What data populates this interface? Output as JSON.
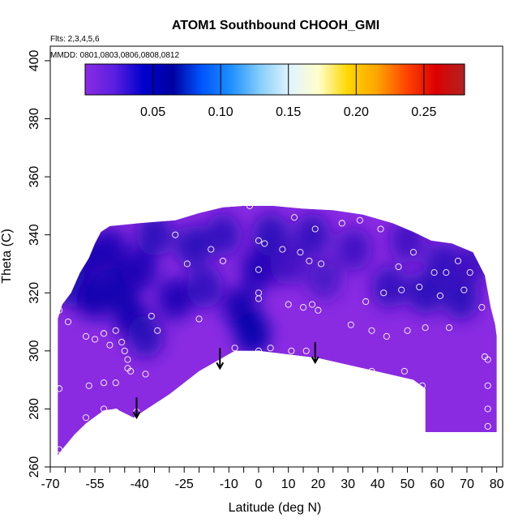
{
  "chart_data": {
    "type": "heatmap",
    "title": "ATOM1 Southbound CHOOH_GMI",
    "flights_note": "Flts: 2,3,4,5,6",
    "dates_note": "MMDD: 0801,0803,0806,0808,0812",
    "xlabel": "Latitude (deg N)",
    "ylabel": "Theta (C)",
    "xlim": [
      -70,
      82
    ],
    "ylim": [
      260,
      405
    ],
    "x_ticks": [
      -70,
      -55,
      -40,
      -25,
      -10,
      0,
      10,
      20,
      30,
      40,
      50,
      60,
      70,
      80
    ],
    "x_minor_ticks": [
      -65,
      -60,
      -50,
      -45,
      -35,
      -30,
      -20,
      -15,
      -5,
      5,
      15,
      25,
      35,
      45,
      55,
      65,
      75
    ],
    "y_ticks": [
      260,
      280,
      300,
      320,
      340,
      360,
      380,
      400
    ],
    "colorbar": {
      "range": [
        0.0,
        0.28
      ],
      "ticks": [
        0.05,
        0.1,
        0.15,
        0.2,
        0.25
      ],
      "tick_labels": [
        "0.05",
        "0.10",
        "0.15",
        "0.20",
        "0.25"
      ],
      "colors": [
        "#8a2be2",
        "#5a1fe0",
        "#0000cd",
        "#0000a0",
        "#0055ff",
        "#1e90ff",
        "#87cefa",
        "#e0f4ff",
        "#ffffcc",
        "#ffd700",
        "#ffa500",
        "#ff4500",
        "#dd0000",
        "#b22222"
      ]
    },
    "color_scale": {
      "low": "#8a2be2",
      "high": "#0000a8"
    },
    "field_range_note": "all values approx 0.00-0.06",
    "region_boundary": {
      "top": [
        [
          -67.5,
          311
        ],
        [
          -66,
          316
        ],
        [
          -63,
          320
        ],
        [
          -60,
          327
        ],
        [
          -57,
          332
        ],
        [
          -55,
          337
        ],
        [
          -53,
          341
        ],
        [
          -50,
          343
        ],
        [
          -40,
          344
        ],
        [
          -28,
          345
        ],
        [
          -20,
          347.5
        ],
        [
          -12,
          349.5
        ],
        [
          -5,
          350
        ],
        [
          5,
          350
        ],
        [
          15,
          349
        ],
        [
          25,
          348.5
        ],
        [
          35,
          347
        ],
        [
          45,
          344
        ],
        [
          52,
          341
        ],
        [
          58,
          338
        ],
        [
          65,
          337
        ],
        [
          72,
          334
        ],
        [
          76,
          326
        ],
        [
          78,
          315
        ],
        [
          79.5,
          309
        ],
        [
          80,
          305
        ]
      ],
      "bottom": [
        [
          80,
          272
        ],
        [
          56,
          272
        ],
        [
          56,
          287
        ],
        [
          52,
          290
        ],
        [
          35,
          294
        ],
        [
          20,
          297.5
        ],
        [
          0,
          300
        ],
        [
          -8,
          300
        ],
        [
          -20,
          293
        ],
        [
          -30,
          285
        ],
        [
          -42,
          277
        ],
        [
          -48,
          280
        ],
        [
          -52,
          279.5
        ],
        [
          -58,
          275
        ],
        [
          -62,
          271
        ],
        [
          -66,
          266
        ],
        [
          -67.5,
          264
        ]
      ]
    },
    "cells": [
      {
        "lon": -62,
        "theta": 322,
        "value": 0.045
      },
      {
        "lon": -57,
        "theta": 332,
        "value": 0.05
      },
      {
        "lon": -55,
        "theta": 318,
        "value": 0.055
      },
      {
        "lon": -50,
        "theta": 335,
        "value": 0.05
      },
      {
        "lon": -47,
        "theta": 322,
        "value": 0.055
      },
      {
        "lon": -43,
        "theta": 312,
        "value": 0.055
      },
      {
        "lon": -40,
        "theta": 328,
        "value": 0.05
      },
      {
        "lon": -38,
        "theta": 305,
        "value": 0.045
      },
      {
        "lon": -35,
        "theta": 340,
        "value": 0.045
      },
      {
        "lon": -28,
        "theta": 318,
        "value": 0.05
      },
      {
        "lon": -22,
        "theta": 336,
        "value": 0.045
      },
      {
        "lon": -18,
        "theta": 322,
        "value": 0.04
      },
      {
        "lon": -12,
        "theta": 340,
        "value": 0.04
      },
      {
        "lon": -6,
        "theta": 315,
        "value": 0.055
      },
      {
        "lon": -2,
        "theta": 306,
        "value": 0.06
      },
      {
        "lon": 0,
        "theta": 328,
        "value": 0.05
      },
      {
        "lon": 4,
        "theta": 340,
        "value": 0.045
      },
      {
        "lon": 10,
        "theta": 330,
        "value": 0.035
      },
      {
        "lon": 18,
        "theta": 340,
        "value": 0.04
      },
      {
        "lon": 22,
        "theta": 325,
        "value": 0.03
      },
      {
        "lon": 32,
        "theta": 335,
        "value": 0.035
      },
      {
        "lon": 44,
        "theta": 322,
        "value": 0.04
      },
      {
        "lon": 50,
        "theta": 338,
        "value": 0.035
      },
      {
        "lon": 56,
        "theta": 320,
        "value": 0.045
      },
      {
        "lon": 62,
        "theta": 330,
        "value": 0.04
      },
      {
        "lon": 68,
        "theta": 318,
        "value": 0.045
      },
      {
        "lon": 72,
        "theta": 330,
        "value": 0.035
      }
    ],
    "points": [
      {
        "lon": -64,
        "theta": 310
      },
      {
        "lon": -58,
        "theta": 305
      },
      {
        "lon": -55,
        "theta": 304
      },
      {
        "lon": -52,
        "theta": 306
      },
      {
        "lon": -48,
        "theta": 307
      },
      {
        "lon": -46,
        "theta": 303
      },
      {
        "lon": -45,
        "theta": 300
      },
      {
        "lon": -44,
        "theta": 297
      },
      {
        "lon": -44,
        "theta": 294
      },
      {
        "lon": -50,
        "theta": 302
      },
      {
        "lon": -43,
        "theta": 293
      },
      {
        "lon": -38,
        "theta": 292
      },
      {
        "lon": -36,
        "theta": 312
      },
      {
        "lon": -34,
        "theta": 307
      },
      {
        "lon": -28,
        "theta": 340
      },
      {
        "lon": -24,
        "theta": 330
      },
      {
        "lon": -20,
        "theta": 311
      },
      {
        "lon": -16,
        "theta": 335
      },
      {
        "lon": -12,
        "theta": 331
      },
      {
        "lon": -8,
        "theta": 301
      },
      {
        "lon": -3,
        "theta": 350
      },
      {
        "lon": 0,
        "theta": 338
      },
      {
        "lon": 0,
        "theta": 328
      },
      {
        "lon": 0,
        "theta": 320
      },
      {
        "lon": 0,
        "theta": 318
      },
      {
        "lon": 0,
        "theta": 300
      },
      {
        "lon": 0,
        "theta": 299
      },
      {
        "lon": 2,
        "theta": 337
      },
      {
        "lon": 4,
        "theta": 301
      },
      {
        "lon": 8,
        "theta": 335
      },
      {
        "lon": 10,
        "theta": 316
      },
      {
        "lon": 11,
        "theta": 300
      },
      {
        "lon": 12,
        "theta": 346
      },
      {
        "lon": 14,
        "theta": 334
      },
      {
        "lon": 15,
        "theta": 315
      },
      {
        "lon": 16,
        "theta": 300
      },
      {
        "lon": 17,
        "theta": 331
      },
      {
        "lon": 18,
        "theta": 316
      },
      {
        "lon": 19,
        "theta": 342
      },
      {
        "lon": 20,
        "theta": 314
      },
      {
        "lon": 21,
        "theta": 330
      },
      {
        "lon": 28,
        "theta": 344
      },
      {
        "lon": 31,
        "theta": 309
      },
      {
        "lon": 34,
        "theta": 345
      },
      {
        "lon": 36,
        "theta": 317
      },
      {
        "lon": 38,
        "theta": 307
      },
      {
        "lon": 38,
        "theta": 293
      },
      {
        "lon": 41,
        "theta": 342
      },
      {
        "lon": 42,
        "theta": 320
      },
      {
        "lon": 43,
        "theta": 305
      },
      {
        "lon": 43,
        "theta": 291
      },
      {
        "lon": 47,
        "theta": 329
      },
      {
        "lon": 48,
        "theta": 321
      },
      {
        "lon": 49,
        "theta": 293
      },
      {
        "lon": 50,
        "theta": 307
      },
      {
        "lon": 52,
        "theta": 334
      },
      {
        "lon": 54,
        "theta": 322
      },
      {
        "lon": 55,
        "theta": 288
      },
      {
        "lon": 56,
        "theta": 308
      },
      {
        "lon": 59,
        "theta": 327
      },
      {
        "lon": 61,
        "theta": 319
      },
      {
        "lon": 63,
        "theta": 327
      },
      {
        "lon": 64,
        "theta": 308
      },
      {
        "lon": 67,
        "theta": 331
      },
      {
        "lon": 69,
        "theta": 321
      },
      {
        "lon": 71,
        "theta": 327
      },
      {
        "lon": 74,
        "theta": 335
      },
      {
        "lon": 75,
        "theta": 315
      },
      {
        "lon": 76,
        "theta": 298
      },
      {
        "lon": 77,
        "theta": 297
      },
      {
        "lon": 77,
        "theta": 288
      },
      {
        "lon": 77,
        "theta": 280
      },
      {
        "lon": 77,
        "theta": 274
      },
      {
        "lon": -67,
        "theta": 314
      },
      {
        "lon": -67,
        "theta": 287
      },
      {
        "lon": -67,
        "theta": 266
      },
      {
        "lon": -57,
        "theta": 288
      },
      {
        "lon": -58,
        "theta": 277
      },
      {
        "lon": -52,
        "theta": 289
      },
      {
        "lon": -52,
        "theta": 280
      },
      {
        "lon": -48,
        "theta": 279
      },
      {
        "lon": -48,
        "theta": 289
      },
      {
        "lon": -41,
        "theta": 279
      }
    ],
    "arrows": [
      {
        "lon": -41,
        "theta_top": 284,
        "theta_tip": 277
      },
      {
        "lon": -13,
        "theta_top": 301,
        "theta_tip": 294
      },
      {
        "lon": 19,
        "theta_top": 303,
        "theta_tip": 296
      }
    ]
  }
}
